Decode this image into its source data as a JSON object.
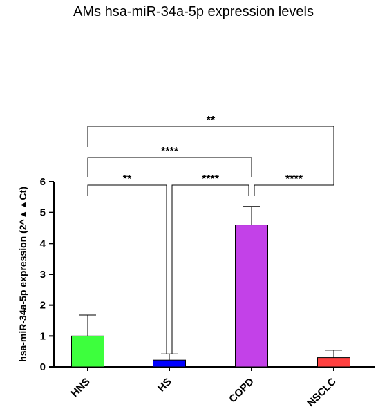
{
  "chart_data": {
    "type": "bar",
    "title": "AMs hsa-miR-34a-5p expression levels",
    "ylabel": "hsa-miR-34a-5p expression (2^▲▲Ct)",
    "xlabel": "",
    "categories": [
      "HNS",
      "HS",
      "COPD",
      "NSCLC"
    ],
    "values": [
      1.0,
      0.22,
      4.6,
      0.3
    ],
    "errors": [
      0.68,
      0.2,
      0.6,
      0.24
    ],
    "colors": [
      "#3dff3d",
      "#0000ff",
      "#c341e8",
      "#ff4040"
    ],
    "ylim": [
      0,
      6
    ],
    "yticks": [
      "0",
      "1",
      "2",
      "3",
      "4",
      "5",
      "6"
    ],
    "grid": false,
    "significance": [
      {
        "from": 0,
        "to": 1,
        "label": "**"
      },
      {
        "from": 1,
        "to": 2,
        "label": "****"
      },
      {
        "from": 2,
        "to": 3,
        "label": "****"
      },
      {
        "from": 0,
        "to": 2,
        "label": "****"
      },
      {
        "from": 0,
        "to": 3,
        "label": "**"
      }
    ]
  }
}
